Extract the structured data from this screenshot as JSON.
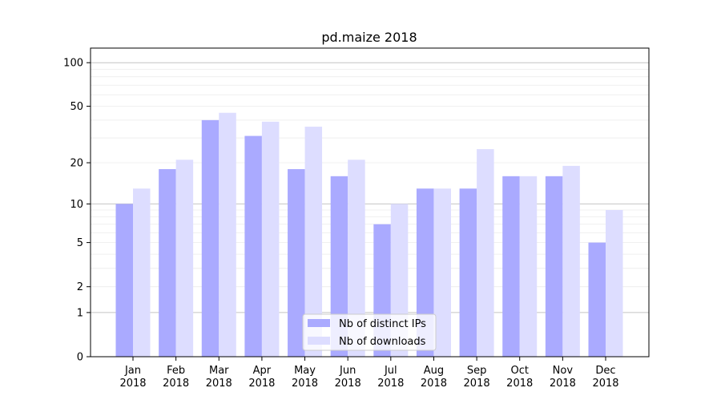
{
  "chart_data": {
    "type": "bar",
    "title": "pd.maize 2018",
    "xlabel": "",
    "ylabel": "",
    "yscale": "symlog",
    "ylim": [
      0,
      120
    ],
    "y_ticks": [
      0,
      1,
      2,
      5,
      10,
      20,
      50,
      100
    ],
    "grid": true,
    "legend_placement": "lower center",
    "categories": [
      "Jan\n2018",
      "Feb\n2018",
      "Mar\n2018",
      "Apr\n2018",
      "May\n2018",
      "Jun\n2018",
      "Jul\n2018",
      "Aug\n2018",
      "Sep\n2018",
      "Oct\n2018",
      "Nov\n2018",
      "Dec\n2018"
    ],
    "series": [
      {
        "name": "Nb of distinct IPs",
        "color": "#aaaaff",
        "values": [
          10,
          18,
          40,
          31,
          18,
          16,
          7,
          13,
          13,
          16,
          16,
          5
        ]
      },
      {
        "name": "Nb of downloads",
        "color": "#ddddff",
        "values": [
          13,
          21,
          45,
          39,
          36,
          21,
          10,
          13,
          25,
          16,
          19,
          9
        ]
      }
    ]
  }
}
